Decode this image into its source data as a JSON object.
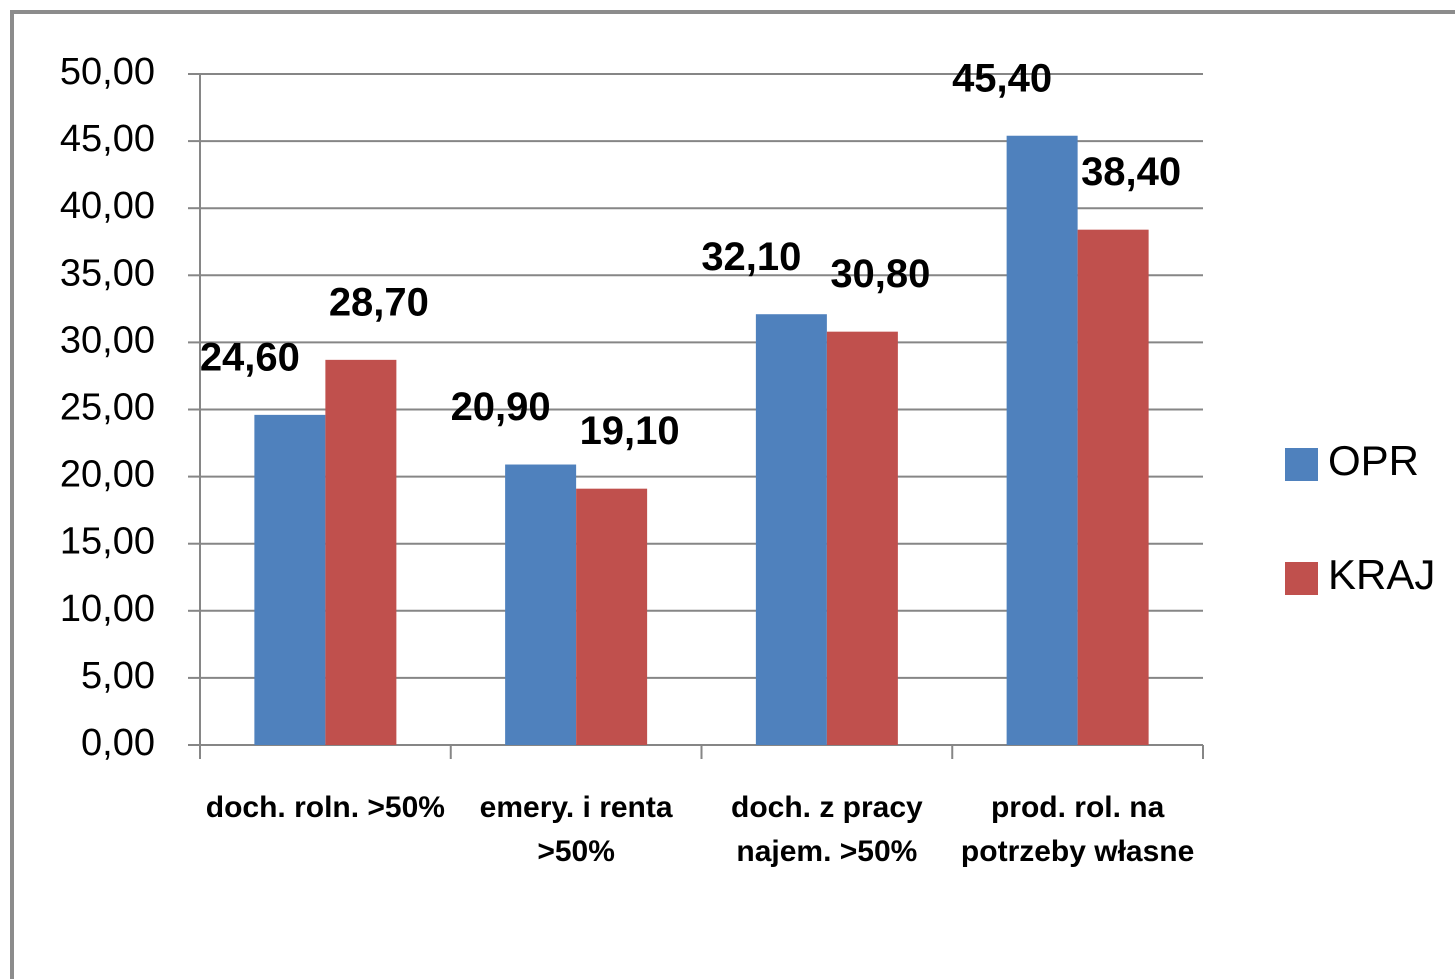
{
  "chart_data": {
    "type": "bar",
    "categories": [
      "doch. roln. >50%",
      "emery. i renta >50%",
      "doch. z pracy najem. >50%",
      "prod. rol. na potrzeby własne"
    ],
    "series": [
      {
        "name": "OPR",
        "color": "#4f81bd",
        "values": [
          24.6,
          20.9,
          32.1,
          45.4
        ],
        "value_labels": [
          "24,60",
          "20,90",
          "32,10",
          "45,40"
        ]
      },
      {
        "name": "KRAJ",
        "color": "#c0504d",
        "values": [
          28.7,
          19.1,
          30.8,
          38.4
        ],
        "value_labels": [
          "28,70",
          "19,10",
          "30,80",
          "38,40"
        ]
      }
    ],
    "ylim": [
      0,
      50
    ],
    "yticks": [
      {
        "value": 0,
        "label": "0,00"
      },
      {
        "value": 5,
        "label": "5,00"
      },
      {
        "value": 10,
        "label": "10,00"
      },
      {
        "value": 15,
        "label": "15,00"
      },
      {
        "value": 20,
        "label": "20,00"
      },
      {
        "value": 25,
        "label": "25,00"
      },
      {
        "value": 30,
        "label": "30,00"
      },
      {
        "value": 35,
        "label": "35,00"
      },
      {
        "value": 40,
        "label": "40,00"
      },
      {
        "value": 45,
        "label": "45,00"
      },
      {
        "value": 50,
        "label": "50,00"
      }
    ],
    "grid": true,
    "legend": "right"
  }
}
